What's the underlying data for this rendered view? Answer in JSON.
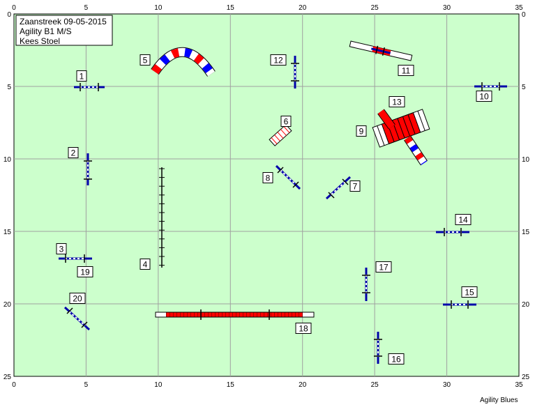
{
  "course": {
    "venue": "Zaanstreek",
    "date": "09-05-2015",
    "class": "Agility B1 M/S",
    "judge": "Kees Stoel"
  },
  "footer": "Agility Blues",
  "grid": {
    "x_ticks": [
      0,
      5,
      10,
      15,
      20,
      25,
      30,
      35
    ],
    "y_ticks": [
      0,
      5,
      10,
      15,
      20,
      25
    ],
    "xlim": [
      0,
      35
    ],
    "ylim": [
      0,
      25
    ]
  },
  "colors": {
    "field": "#ccffcc",
    "grid": "#a0a0a0",
    "pole": "#0000aa",
    "red": "#ff0000",
    "blue": "#0000ff"
  },
  "obstacles": [
    {
      "number": "1",
      "type": "hurdle",
      "x": 5.0,
      "y": 4.9
    },
    {
      "number": "2",
      "type": "hurdle",
      "x": 5.1,
      "y": 10.7
    },
    {
      "number": "3",
      "type": "hurdle",
      "x": 4.2,
      "y": 16.8
    },
    {
      "number": "4",
      "type": "weave",
      "x": 10.2,
      "y": 14.0
    },
    {
      "number": "5",
      "type": "tunnel",
      "x": 11.8,
      "y": 3.0
    },
    {
      "number": "6",
      "type": "table",
      "x": 18.4,
      "y": 8.2
    },
    {
      "number": "7",
      "type": "hurdle",
      "x": 22.5,
      "y": 11.9
    },
    {
      "number": "8",
      "type": "hurdle",
      "x": 19.0,
      "y": 11.3
    },
    {
      "number": "9",
      "type": "tunnel",
      "x": 26.4,
      "y": 8.8
    },
    {
      "number": "10",
      "type": "hurdle",
      "x": 33.0,
      "y": 4.9
    },
    {
      "number": "11",
      "type": "hurdle",
      "x": 25.5,
      "y": 2.3
    },
    {
      "number": "12",
      "type": "hurdle",
      "x": 19.4,
      "y": 3.9
    },
    {
      "number": "13",
      "type": "tunnel",
      "x": 26.9,
      "y": 8.7
    },
    {
      "number": "14",
      "type": "hurdle",
      "x": 30.5,
      "y": 15.0
    },
    {
      "number": "15",
      "type": "hurdle",
      "x": 30.7,
      "y": 20.0
    },
    {
      "number": "16",
      "type": "hurdle",
      "x": 25.2,
      "y": 23.0
    },
    {
      "number": "17",
      "type": "hurdle",
      "x": 24.5,
      "y": 18.7
    },
    {
      "number": "18",
      "type": "dogwalk",
      "x": 15.4,
      "y": 20.7
    },
    {
      "number": "19",
      "type": "hurdle",
      "x": 4.2,
      "y": 16.8
    },
    {
      "number": "20",
      "type": "hurdle",
      "x": 4.0,
      "y": 21.0
    }
  ]
}
